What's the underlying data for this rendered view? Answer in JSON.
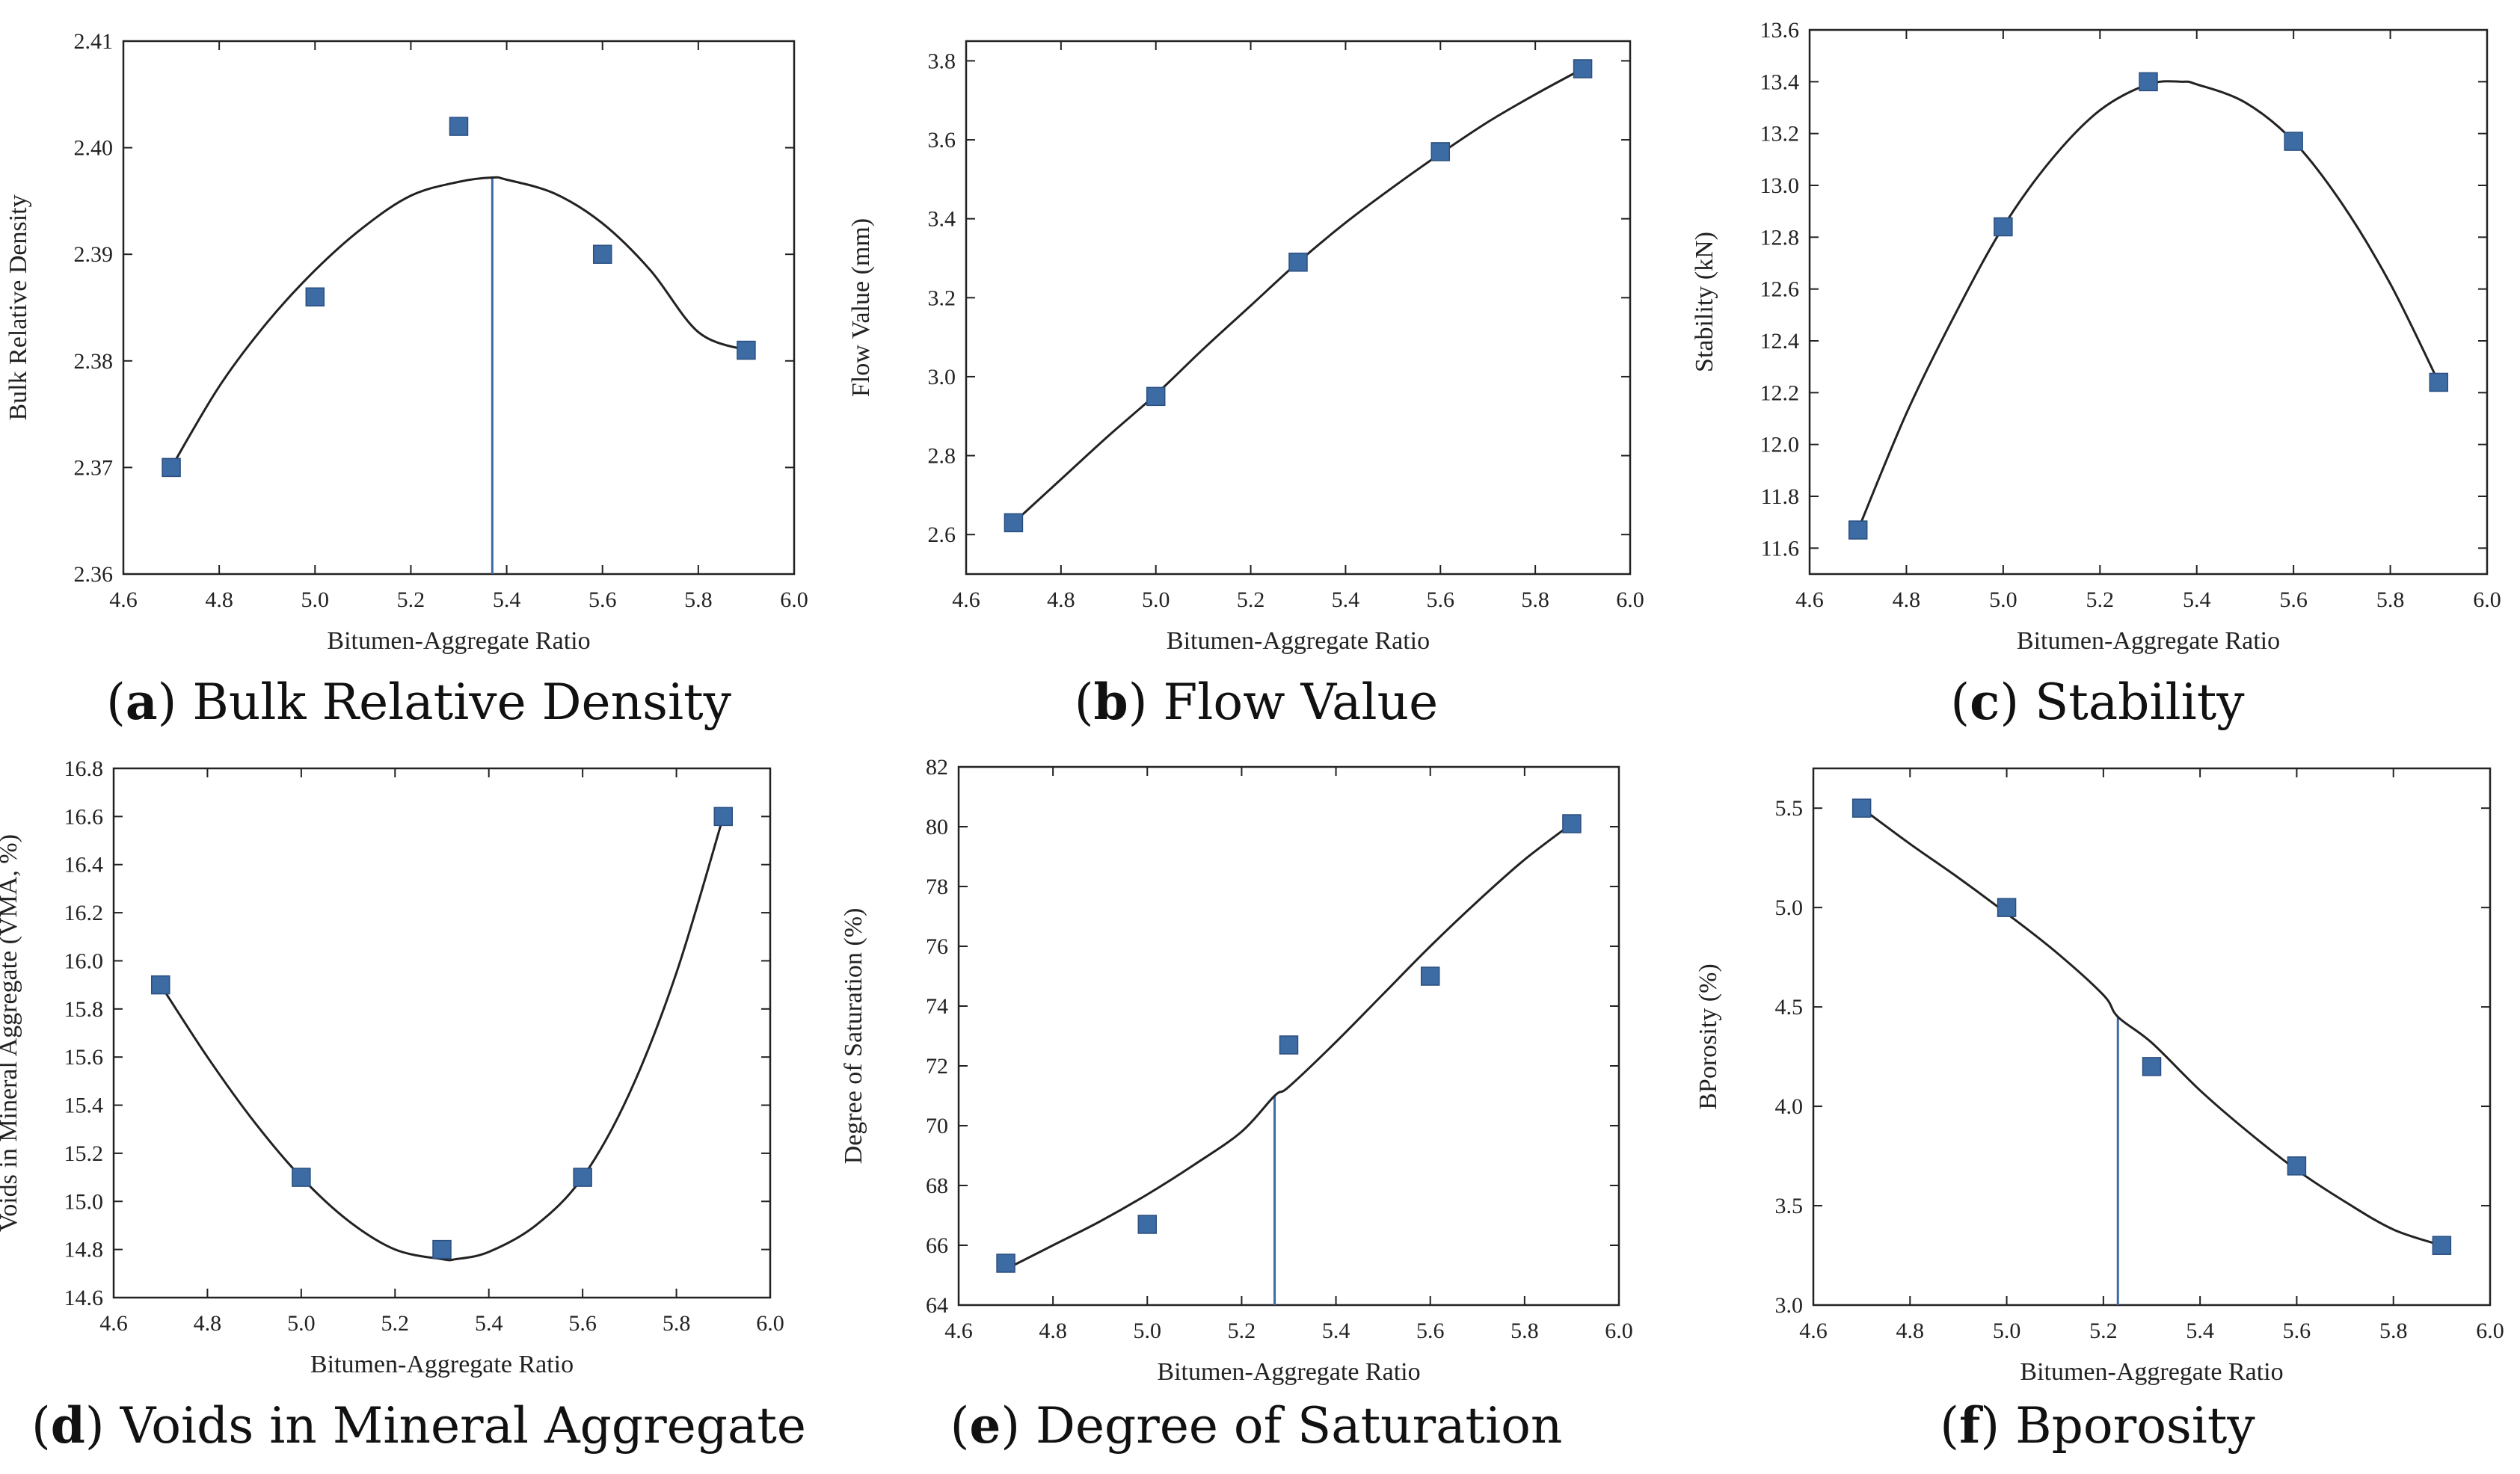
{
  "chart_data": [
    {
      "id": "a",
      "type": "scatter",
      "caption_letter": "a",
      "caption_text": "Bulk Relative Density",
      "xlabel": "Bitumen-Aggregate Ratio",
      "ylabel": "Bulk Relative Density",
      "xlim": [
        4.6,
        6.0
      ],
      "ylim": [
        2.36,
        2.41
      ],
      "xticks": [
        4.6,
        4.8,
        5.0,
        5.2,
        5.4,
        5.6,
        5.8,
        6.0
      ],
      "yticks": [
        2.36,
        2.37,
        2.38,
        2.39,
        2.4,
        2.41
      ],
      "ytick_decimals": 2,
      "x": [
        4.7,
        5.0,
        5.3,
        5.6,
        5.9
      ],
      "y": [
        2.37,
        2.386,
        2.402,
        2.39,
        2.381
      ],
      "fit_curve": {
        "x": [
          4.7,
          4.8,
          4.9,
          5.0,
          5.1,
          5.2,
          5.3,
          5.37,
          5.4,
          5.5,
          5.6,
          5.7,
          5.8,
          5.9
        ],
        "y": [
          2.37,
          2.3776,
          2.3836,
          2.3885,
          2.3925,
          2.3955,
          2.3968,
          2.3972,
          2.397,
          2.3957,
          2.3929,
          2.3885,
          2.3827,
          2.381
        ]
      },
      "marker_line_x": 5.37,
      "marker_line_y": 2.3972
    },
    {
      "id": "b",
      "type": "scatter",
      "caption_letter": "b",
      "caption_text": "Flow Value",
      "xlabel": "Bitumen-Aggregate Ratio",
      "ylabel": "Flow Value (mm)",
      "xlim": [
        4.6,
        6.0
      ],
      "ylim": [
        2.5,
        3.85
      ],
      "xticks": [
        4.6,
        4.8,
        5.0,
        5.2,
        5.4,
        5.6,
        5.8,
        6.0
      ],
      "yticks": [
        2.6,
        2.8,
        3.0,
        3.2,
        3.4,
        3.6,
        3.8
      ],
      "ytick_decimals": 1,
      "x": [
        4.7,
        5.0,
        5.3,
        5.6,
        5.9
      ],
      "y": [
        2.63,
        2.95,
        3.29,
        3.57,
        3.78
      ],
      "fit_curve": {
        "x": [
          4.7,
          4.8,
          4.9,
          5.0,
          5.1,
          5.2,
          5.3,
          5.4,
          5.5,
          5.6,
          5.7,
          5.8,
          5.9
        ],
        "y": [
          2.63,
          2.74,
          2.85,
          2.955,
          3.07,
          3.18,
          3.29,
          3.39,
          3.48,
          3.565,
          3.645,
          3.715,
          3.78
        ]
      },
      "marker_line_x": null,
      "marker_line_y": null
    },
    {
      "id": "c",
      "type": "scatter",
      "caption_letter": "c",
      "caption_text": "Stability",
      "xlabel": "Bitumen-Aggregate Ratio",
      "ylabel": "Stability (kN)",
      "xlim": [
        4.6,
        6.0
      ],
      "ylim": [
        11.5,
        13.6
      ],
      "xticks": [
        4.6,
        4.8,
        5.0,
        5.2,
        5.4,
        5.6,
        5.8,
        6.0
      ],
      "yticks": [
        11.6,
        11.8,
        12.0,
        12.2,
        12.4,
        12.6,
        12.8,
        13.0,
        13.2,
        13.4,
        13.6
      ],
      "ytick_decimals": 1,
      "x": [
        4.7,
        5.0,
        5.3,
        5.6,
        5.9
      ],
      "y": [
        11.67,
        12.84,
        13.4,
        13.17,
        12.24
      ],
      "fit_curve": {
        "x": [
          4.7,
          4.8,
          4.9,
          5.0,
          5.1,
          5.2,
          5.3,
          5.37,
          5.4,
          5.5,
          5.6,
          5.7,
          5.8,
          5.9
        ],
        "y": [
          11.67,
          12.12,
          12.5,
          12.84,
          13.1,
          13.29,
          13.39,
          13.4,
          13.39,
          13.32,
          13.17,
          12.93,
          12.62,
          12.24
        ]
      },
      "marker_line_x": null,
      "marker_line_y": null
    },
    {
      "id": "d",
      "type": "scatter",
      "caption_letter": "d",
      "caption_text": "Voids in Mineral Aggregate",
      "xlabel": "Bitumen-Aggregate Ratio",
      "ylabel": "Voids in Mineral Aggregate (VMA, %)",
      "xlim": [
        4.6,
        6.0
      ],
      "ylim": [
        14.6,
        16.8
      ],
      "xticks": [
        4.6,
        4.8,
        5.0,
        5.2,
        5.4,
        5.6,
        5.8,
        6.0
      ],
      "yticks": [
        14.6,
        14.8,
        15.0,
        15.2,
        15.4,
        15.6,
        15.8,
        16.0,
        16.2,
        16.4,
        16.6,
        16.8
      ],
      "ytick_decimals": 1,
      "x": [
        4.7,
        5.0,
        5.3,
        5.6,
        5.9
      ],
      "y": [
        15.9,
        15.1,
        14.8,
        15.1,
        16.6
      ],
      "fit_curve": {
        "x": [
          4.7,
          4.8,
          4.9,
          5.0,
          5.1,
          5.2,
          5.3,
          5.33,
          5.4,
          5.5,
          5.6,
          5.7,
          5.8,
          5.9
        ],
        "y": [
          15.9,
          15.6,
          15.33,
          15.1,
          14.92,
          14.8,
          14.76,
          14.76,
          14.79,
          14.9,
          15.1,
          15.45,
          15.95,
          16.6
        ]
      },
      "marker_line_x": null,
      "marker_line_y": null
    },
    {
      "id": "e",
      "type": "scatter",
      "caption_letter": "e",
      "caption_text": "Degree of Saturation",
      "xlabel": "Bitumen-Aggregate Ratio",
      "ylabel": "Degree of Saturation (%)",
      "xlim": [
        4.6,
        6.0
      ],
      "ylim": [
        64,
        82
      ],
      "xticks": [
        4.6,
        4.8,
        5.0,
        5.2,
        5.4,
        5.6,
        5.8,
        6.0
      ],
      "yticks": [
        64,
        66,
        68,
        70,
        72,
        74,
        76,
        78,
        80,
        82
      ],
      "ytick_decimals": 0,
      "x": [
        4.7,
        5.0,
        5.3,
        5.6,
        5.9
      ],
      "y": [
        65.4,
        66.7,
        72.7,
        75.0,
        80.1
      ],
      "fit_curve": {
        "x": [
          4.7,
          4.8,
          4.9,
          5.0,
          5.1,
          5.2,
          5.27,
          5.3,
          5.4,
          5.5,
          5.6,
          5.7,
          5.8,
          5.9
        ],
        "y": [
          65.2,
          66.0,
          66.8,
          67.7,
          68.7,
          69.8,
          71.0,
          71.3,
          72.8,
          74.4,
          76.0,
          77.5,
          78.9,
          80.1
        ]
      },
      "marker_line_x": 5.27,
      "marker_line_y": 71.0
    },
    {
      "id": "f",
      "type": "scatter",
      "caption_letter": "f",
      "caption_text": "Bporosity",
      "xlabel": "Bitumen-Aggregate Ratio",
      "ylabel": "BPorosity (%)",
      "xlim": [
        4.6,
        6.0
      ],
      "ylim": [
        3.0,
        5.7
      ],
      "xticks": [
        4.6,
        4.8,
        5.0,
        5.2,
        5.4,
        5.6,
        5.8,
        6.0
      ],
      "yticks": [
        3.0,
        3.5,
        4.0,
        4.5,
        5.0,
        5.5
      ],
      "ytick_decimals": 1,
      "x": [
        4.7,
        5.0,
        5.3,
        5.6,
        5.9
      ],
      "y": [
        5.5,
        5.0,
        4.2,
        3.7,
        3.3
      ],
      "fit_curve": {
        "x": [
          4.7,
          4.8,
          4.9,
          5.0,
          5.1,
          5.2,
          5.23,
          5.3,
          5.4,
          5.5,
          5.6,
          5.7,
          5.8,
          5.9
        ],
        "y": [
          5.5,
          5.32,
          5.15,
          4.97,
          4.78,
          4.56,
          4.45,
          4.32,
          4.08,
          3.87,
          3.68,
          3.52,
          3.38,
          3.3
        ]
      },
      "marker_line_x": 5.23,
      "marker_line_y": 4.45
    }
  ],
  "colors": {
    "marker": "#3d6ba3",
    "marker_stroke": "#2a4f80",
    "curve": "#222222",
    "axis": "#222222",
    "vline": "#3d6ba3"
  }
}
